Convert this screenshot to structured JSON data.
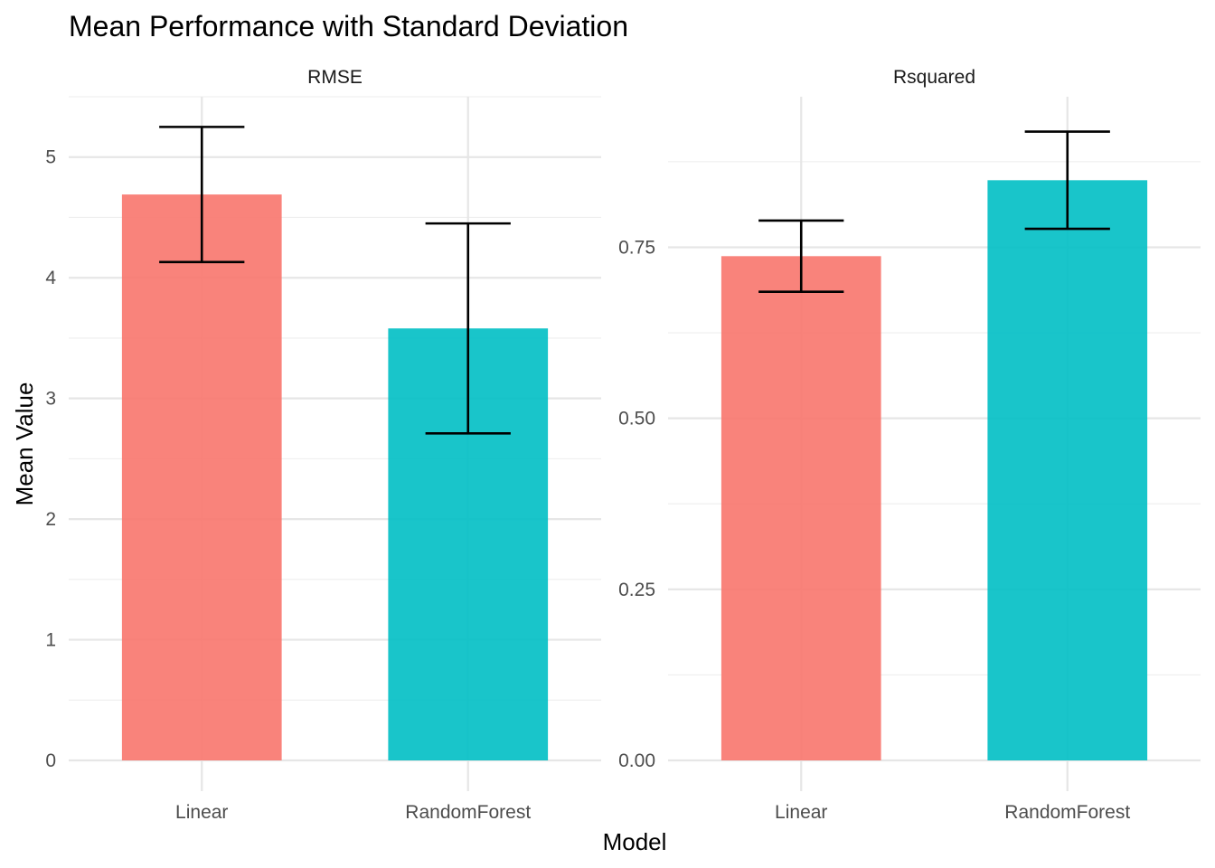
{
  "chart_data": {
    "type": "bar",
    "title": "Mean Performance with Standard Deviation",
    "xlabel": "Model",
    "ylabel": "Mean Value",
    "grid": true,
    "legend": "none",
    "colors": {
      "Linear": "#F8766D",
      "RandomForest": "#00BFC4"
    },
    "categories": [
      "Linear",
      "RandomForest"
    ],
    "facets": [
      {
        "strip": "RMSE",
        "ylim": [
          0,
          5.5
        ],
        "yticks": [
          0,
          1,
          2,
          3,
          4,
          5
        ],
        "ytick_labels": [
          "0",
          "1",
          "2",
          "3",
          "4",
          "5"
        ],
        "values": [
          4.69,
          3.58
        ],
        "sd": [
          0.56,
          0.87
        ]
      },
      {
        "strip": "Rsquared",
        "ylim": [
          0,
          0.97
        ],
        "yticks": [
          0,
          0.25,
          0.5,
          0.75
        ],
        "ytick_labels": [
          "0.00",
          "0.25",
          "0.50",
          "0.75"
        ],
        "values": [
          0.737,
          0.848
        ],
        "sd": [
          0.052,
          0.071
        ]
      }
    ]
  }
}
